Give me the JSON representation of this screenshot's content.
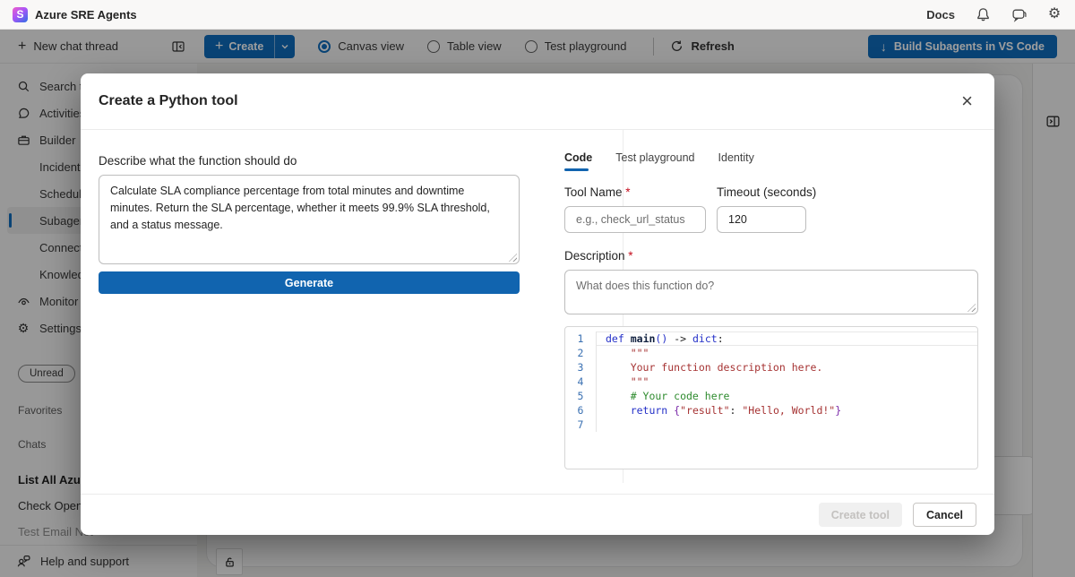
{
  "colors": {
    "accent": "#1164af",
    "toolbar_accent": "#0f6cbd",
    "overlay": "rgba(0,0,0,0.38)",
    "required": "#c50f1f"
  },
  "topbar": {
    "app_title": "Azure SRE Agents",
    "docs_label": "Docs"
  },
  "toolbar": {
    "new_chat_label": "New chat thread",
    "create_label": "Create",
    "views": [
      {
        "label": "Canvas view",
        "selected": true
      },
      {
        "label": "Table view",
        "selected": false
      },
      {
        "label": "Test playground",
        "selected": false
      }
    ],
    "refresh_label": "Refresh",
    "build_label": "Build Subagents in VS Code"
  },
  "sidebar": {
    "items": [
      {
        "label": "Search thre",
        "icon": "search"
      },
      {
        "label": "Activities",
        "icon": "chat-bubble"
      },
      {
        "label": "Builder",
        "icon": "briefcase"
      },
      {
        "label": "Incident res",
        "indent": true
      },
      {
        "label": "Scheduled t",
        "indent": true
      },
      {
        "label": "Subagent b",
        "indent": true,
        "selected": true
      },
      {
        "label": "Connectors",
        "indent": true
      },
      {
        "label": "Knowledge",
        "indent": true
      },
      {
        "label": "Monitor",
        "icon": "eye"
      },
      {
        "label": "Settings",
        "icon": "gear"
      }
    ],
    "unread_label": "Unread",
    "favorites_label": "Favorites",
    "chats_label": "Chats",
    "chat_items": [
      {
        "label": "List All Azure",
        "bold": true
      },
      {
        "label": "Check Open G",
        "bold": false
      },
      {
        "label": "Test Email Not",
        "faded": true
      }
    ],
    "help_label": "Help and support"
  },
  "modal": {
    "title": "Create a Python tool",
    "describe_label": "Describe what the function should do",
    "describe_value": "Calculate SLA compliance percentage from total minutes and downtime minutes. Return the SLA percentage, whether it meets 99.9% SLA threshold, and a status message.",
    "generate_label": "Generate",
    "tabs": [
      {
        "label": "Code",
        "selected": true
      },
      {
        "label": "Test playground",
        "selected": false
      },
      {
        "label": "Identity",
        "selected": false
      }
    ],
    "tool_name_label": "Tool Name",
    "required_marker": "*",
    "tool_name_placeholder": "e.g., check_url_status",
    "timeout_label": "Timeout (seconds)",
    "timeout_value": "120",
    "description_label": "Description",
    "description_placeholder": "What does this function do?",
    "code_lines": [
      {
        "num": "1",
        "active": true,
        "tokens": [
          [
            "kw",
            "def"
          ],
          [
            "pl",
            " "
          ],
          [
            "fn",
            "main"
          ],
          [
            "kw",
            "()"
          ],
          [
            "pl",
            " -> "
          ],
          [
            "kw",
            "dict"
          ],
          [
            "pl",
            ":"
          ]
        ]
      },
      {
        "num": "2",
        "tokens": [
          [
            "str",
            "    \"\"\""
          ]
        ]
      },
      {
        "num": "3",
        "tokens": [
          [
            "str",
            "    Your function description here."
          ]
        ]
      },
      {
        "num": "4",
        "tokens": [
          [
            "str",
            "    \"\"\""
          ]
        ]
      },
      {
        "num": "5",
        "tokens": [
          [
            "com",
            "    # Your code here"
          ]
        ]
      },
      {
        "num": "6",
        "tokens": [
          [
            "kw",
            "    return"
          ],
          [
            "br",
            " {"
          ],
          [
            "str",
            "\"result\""
          ],
          [
            "pl",
            ": "
          ],
          [
            "str",
            "\"Hello, World!\""
          ],
          [
            "br",
            "}"
          ]
        ]
      },
      {
        "num": "7",
        "tokens": []
      }
    ],
    "create_tool_label": "Create tool",
    "cancel_label": "Cancel"
  }
}
